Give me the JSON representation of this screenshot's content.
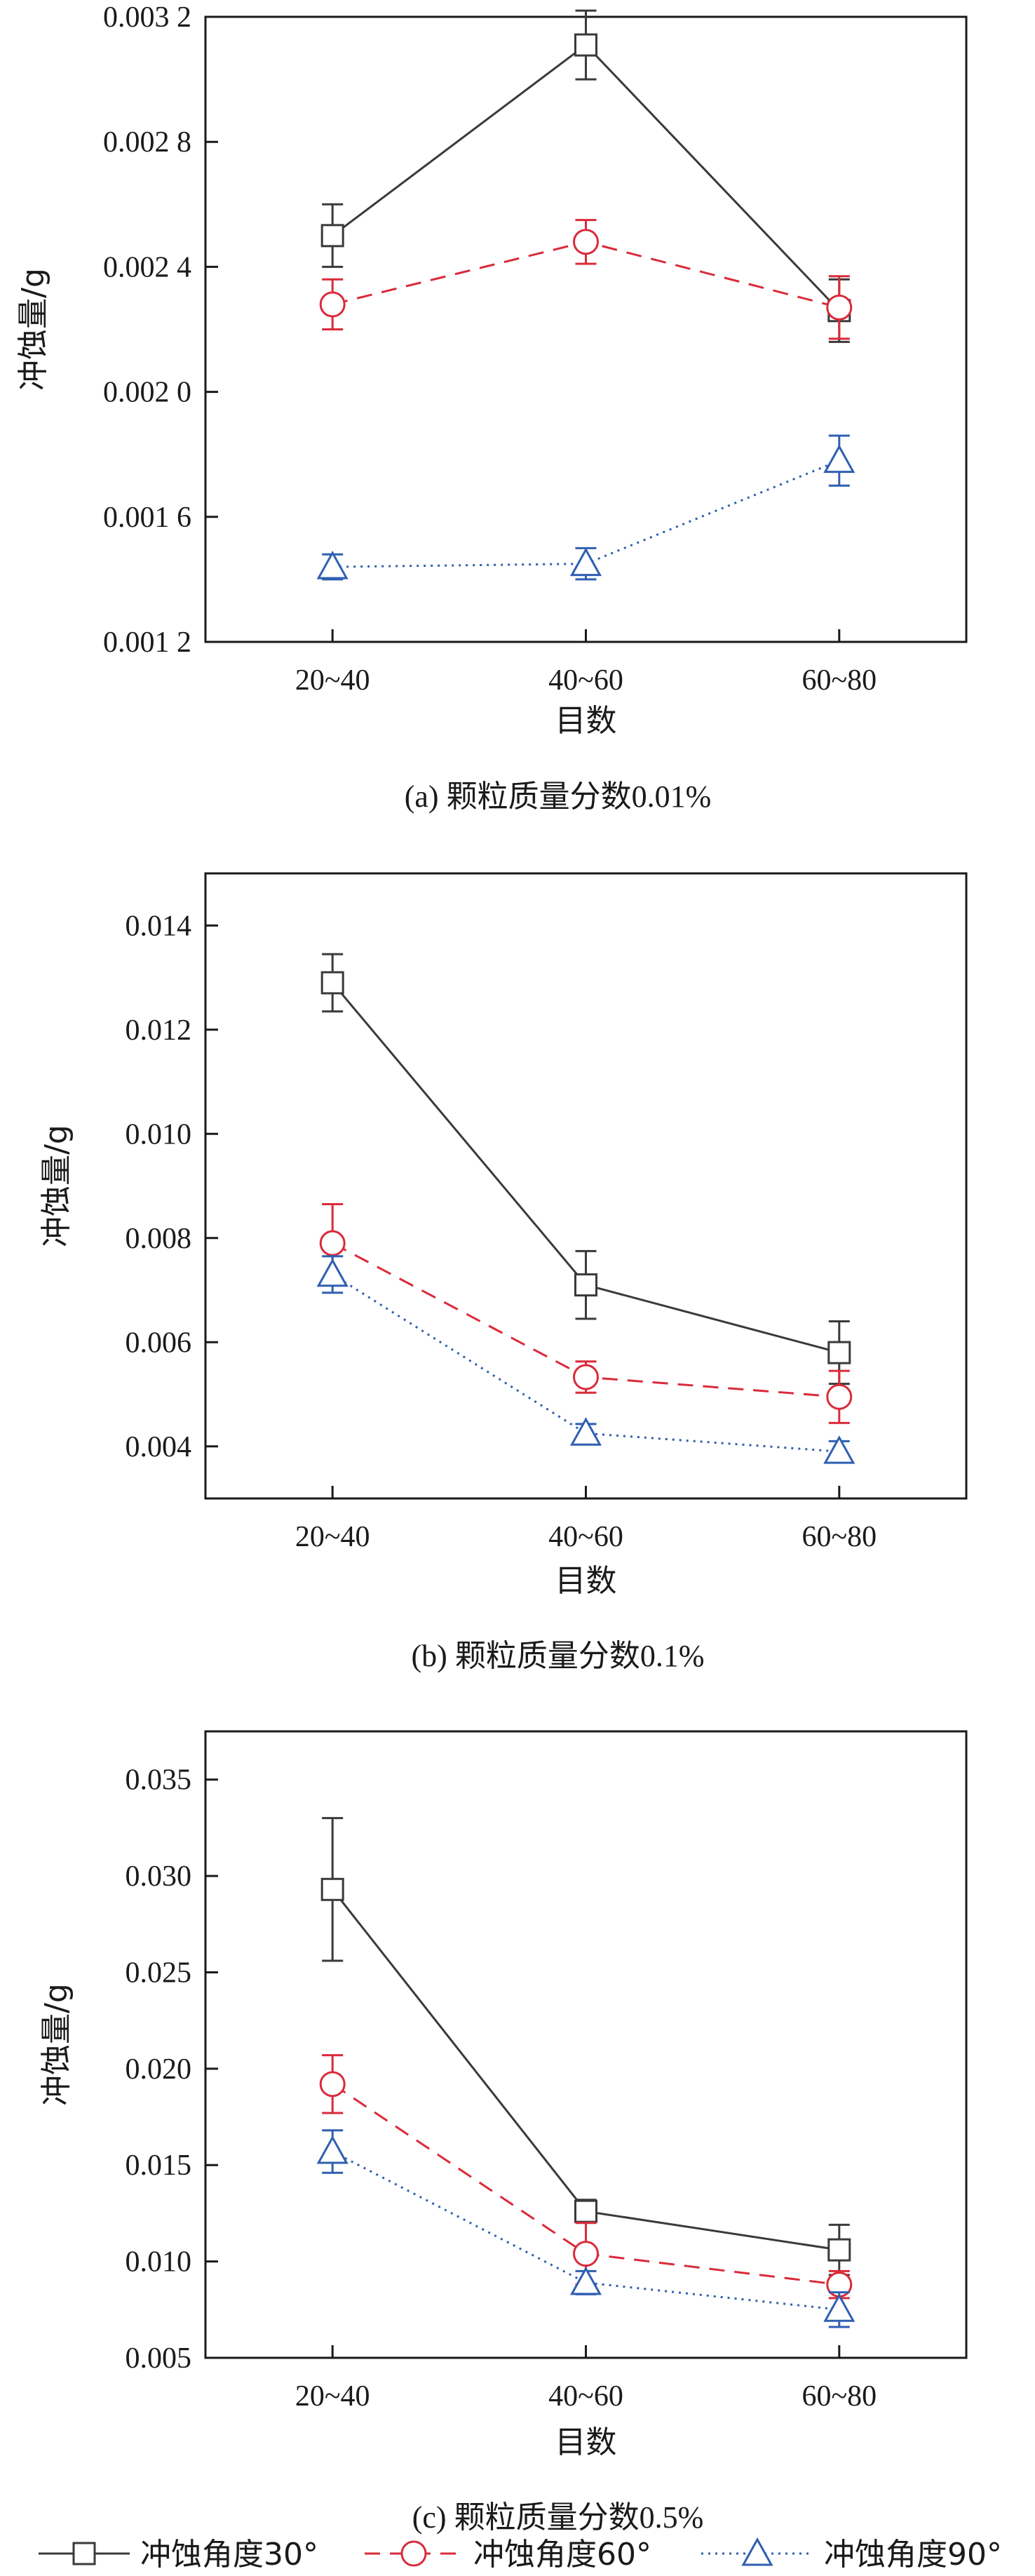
{
  "chart_data": [
    {
      "type": "line",
      "panel_caption": "(a) 颗粒质量分数0.01%",
      "xlabel": "目数",
      "ylabel": "冲蚀量/g",
      "categories": [
        "20~40",
        "40~60",
        "60~80"
      ],
      "ylim": [
        0.0012,
        0.0032
      ],
      "yticks": [
        0.0012,
        0.0016,
        0.002,
        0.0024,
        0.0028,
        0.0032
      ],
      "ytick_labels": [
        "0.001 2",
        "0.001 6",
        "0.002 0",
        "0.002 4",
        "0.002 8",
        "0.003 2"
      ],
      "series": [
        {
          "name": "冲蚀角度30°",
          "values": [
            0.0025,
            0.00311,
            0.00226
          ],
          "errors": [
            0.0001,
            0.00011,
            0.0001
          ]
        },
        {
          "name": "冲蚀角度60°",
          "values": [
            0.00228,
            0.00248,
            0.00227
          ],
          "errors": [
            8e-05,
            7e-05,
            0.0001
          ]
        },
        {
          "name": "冲蚀角度90°",
          "values": [
            0.00144,
            0.00145,
            0.00178
          ],
          "errors": [
            4e-05,
            5e-05,
            8e-05
          ]
        }
      ]
    },
    {
      "type": "line",
      "panel_caption": "(b) 颗粒质量分数0.1%",
      "xlabel": "目数",
      "ylabel": "冲蚀量/g",
      "categories": [
        "20~40",
        "40~60",
        "60~80"
      ],
      "ylim": [
        0.003,
        0.015
      ],
      "yticks": [
        0.004,
        0.006,
        0.008,
        0.01,
        0.012,
        0.014
      ],
      "ytick_labels": [
        "0.004",
        "0.006",
        "0.008",
        "0.010",
        "0.012",
        "0.014"
      ],
      "series": [
        {
          "name": "冲蚀角度30°",
          "values": [
            0.0129,
            0.0071,
            0.0058
          ],
          "errors": [
            0.00055,
            0.00065,
            0.0006
          ]
        },
        {
          "name": "冲蚀角度60°",
          "values": [
            0.0079,
            0.00533,
            0.00495
          ],
          "errors": [
            0.00075,
            0.0003,
            0.0005
          ]
        },
        {
          "name": "冲蚀角度90°",
          "values": [
            0.0073,
            0.00425,
            0.0039
          ],
          "errors": [
            0.00035,
            0.00018,
            0.0002
          ]
        }
      ]
    },
    {
      "type": "line",
      "panel_caption": "(c) 颗粒质量分数0.5%",
      "xlabel": "目数",
      "ylabel": "冲蚀量/g",
      "categories": [
        "20~40",
        "40~60",
        "60~80"
      ],
      "ylim": [
        0.005,
        0.0375
      ],
      "yticks": [
        0.005,
        0.01,
        0.015,
        0.02,
        0.025,
        0.03,
        0.035
      ],
      "ytick_labels": [
        "0.005",
        "0.010",
        "0.015",
        "0.020",
        "0.025",
        "0.030",
        "0.035"
      ],
      "series": [
        {
          "name": "冲蚀角度30°",
          "values": [
            0.0293,
            0.0126,
            0.0106
          ],
          "errors": [
            0.0037,
            0.0006,
            0.0013
          ]
        },
        {
          "name": "冲蚀角度60°",
          "values": [
            0.0192,
            0.0104,
            0.0088
          ],
          "errors": [
            0.0015,
            0.0016,
            0.0007
          ]
        },
        {
          "name": "冲蚀角度90°",
          "values": [
            0.0157,
            0.0089,
            0.0075
          ],
          "errors": [
            0.0011,
            0.0006,
            0.0009
          ]
        }
      ]
    }
  ],
  "legend": {
    "items": [
      {
        "label": "冲蚀角度30°",
        "color": "#3a3a3a",
        "dash": "solid",
        "marker": "square"
      },
      {
        "label": "冲蚀角度60°",
        "color": "#d92b3a",
        "dash": "dashed",
        "marker": "circle"
      },
      {
        "label": "冲蚀角度90°",
        "color": "#2f5fb0",
        "dash": "dotted",
        "marker": "triangle"
      }
    ]
  },
  "colors": {
    "series_30": "#3a3a3a",
    "series_60": "#d92b3a",
    "series_90": "#2f5fb0",
    "axis": "#1a1a1a"
  }
}
